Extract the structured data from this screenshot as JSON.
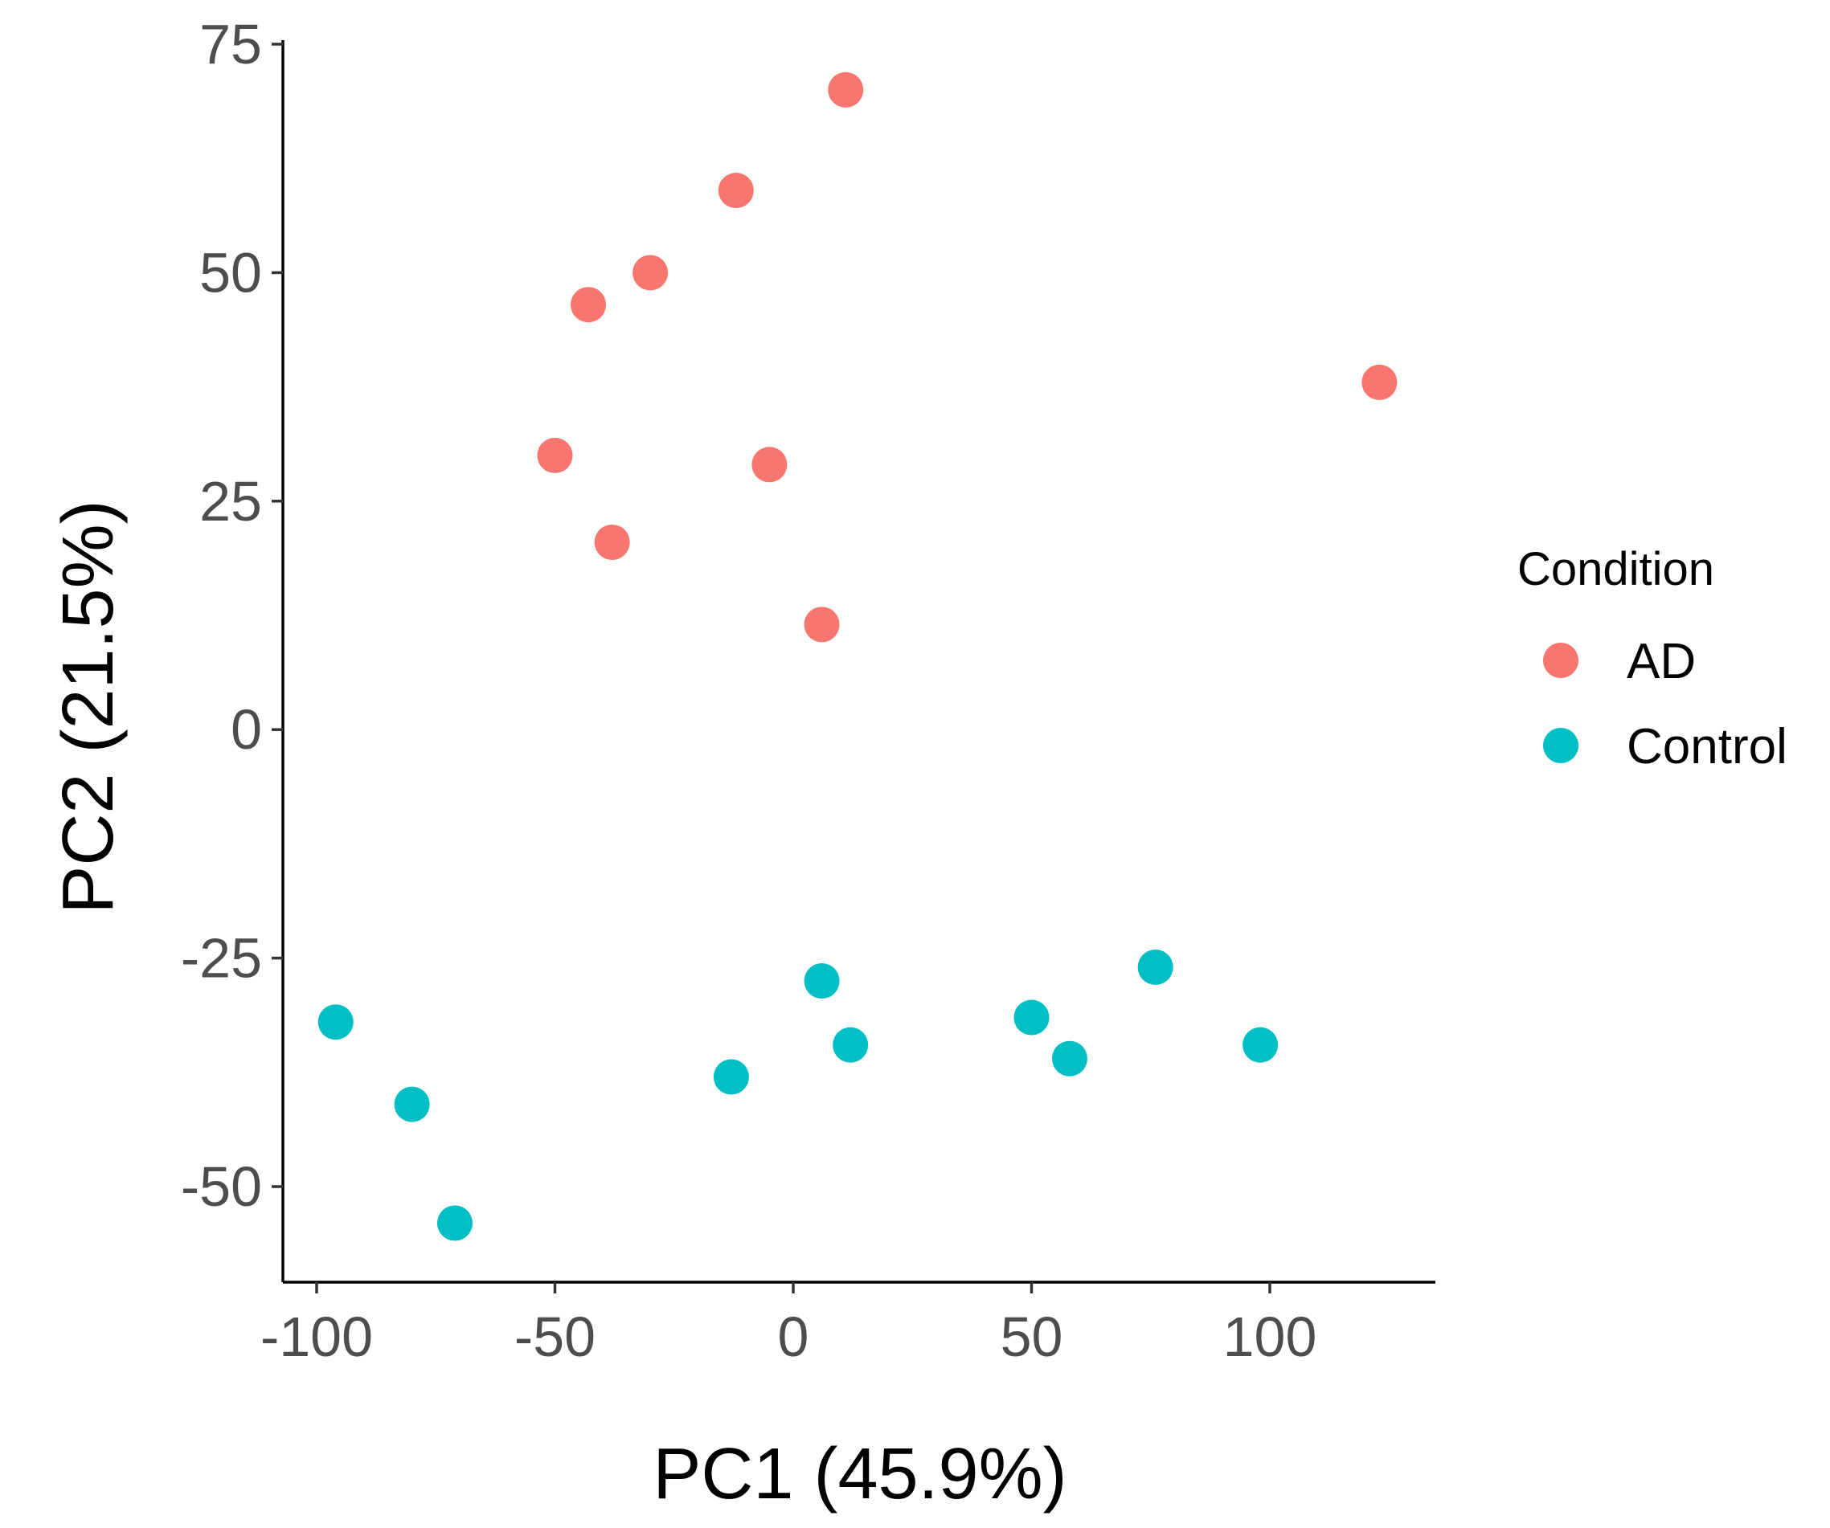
{
  "chart_data": {
    "type": "scatter",
    "title": "",
    "xlabel": "PC1 (45.9%)",
    "ylabel": "PC2 (21.5%)",
    "xlim": [
      -107,
      134
    ],
    "ylim": [
      -60,
      76
    ],
    "xticks": [
      -100,
      -50,
      0,
      50,
      100
    ],
    "yticks": [
      75,
      50,
      25,
      0,
      -25,
      -50
    ],
    "xtick_labels": [
      "-100",
      "-50",
      "0",
      "50",
      "100"
    ],
    "ytick_labels": [
      "75",
      "50",
      "25",
      "0",
      "-25",
      "-50"
    ],
    "grid": false,
    "legend": {
      "title": "Condition",
      "position": "right"
    },
    "series": [
      {
        "name": "AD",
        "color": "#F8766D",
        "points": [
          {
            "x": 11,
            "y": 70
          },
          {
            "x": -12,
            "y": 59
          },
          {
            "x": -30,
            "y": 50
          },
          {
            "x": -43,
            "y": 46.5
          },
          {
            "x": -50,
            "y": 30
          },
          {
            "x": -38,
            "y": 20.5
          },
          {
            "x": -5,
            "y": 29
          },
          {
            "x": 6,
            "y": 11.5
          },
          {
            "x": 123,
            "y": 38
          }
        ]
      },
      {
        "name": "Control",
        "color": "#00BFC4",
        "points": [
          {
            "x": -96,
            "y": -32
          },
          {
            "x": -80,
            "y": -41
          },
          {
            "x": -71,
            "y": -54
          },
          {
            "x": -13,
            "y": -38
          },
          {
            "x": 6,
            "y": -27.5
          },
          {
            "x": 12,
            "y": -34.5
          },
          {
            "x": 50,
            "y": -31.5
          },
          {
            "x": 58,
            "y": -36
          },
          {
            "x": 76,
            "y": -26
          },
          {
            "x": 98,
            "y": -34.5
          }
        ]
      }
    ]
  }
}
